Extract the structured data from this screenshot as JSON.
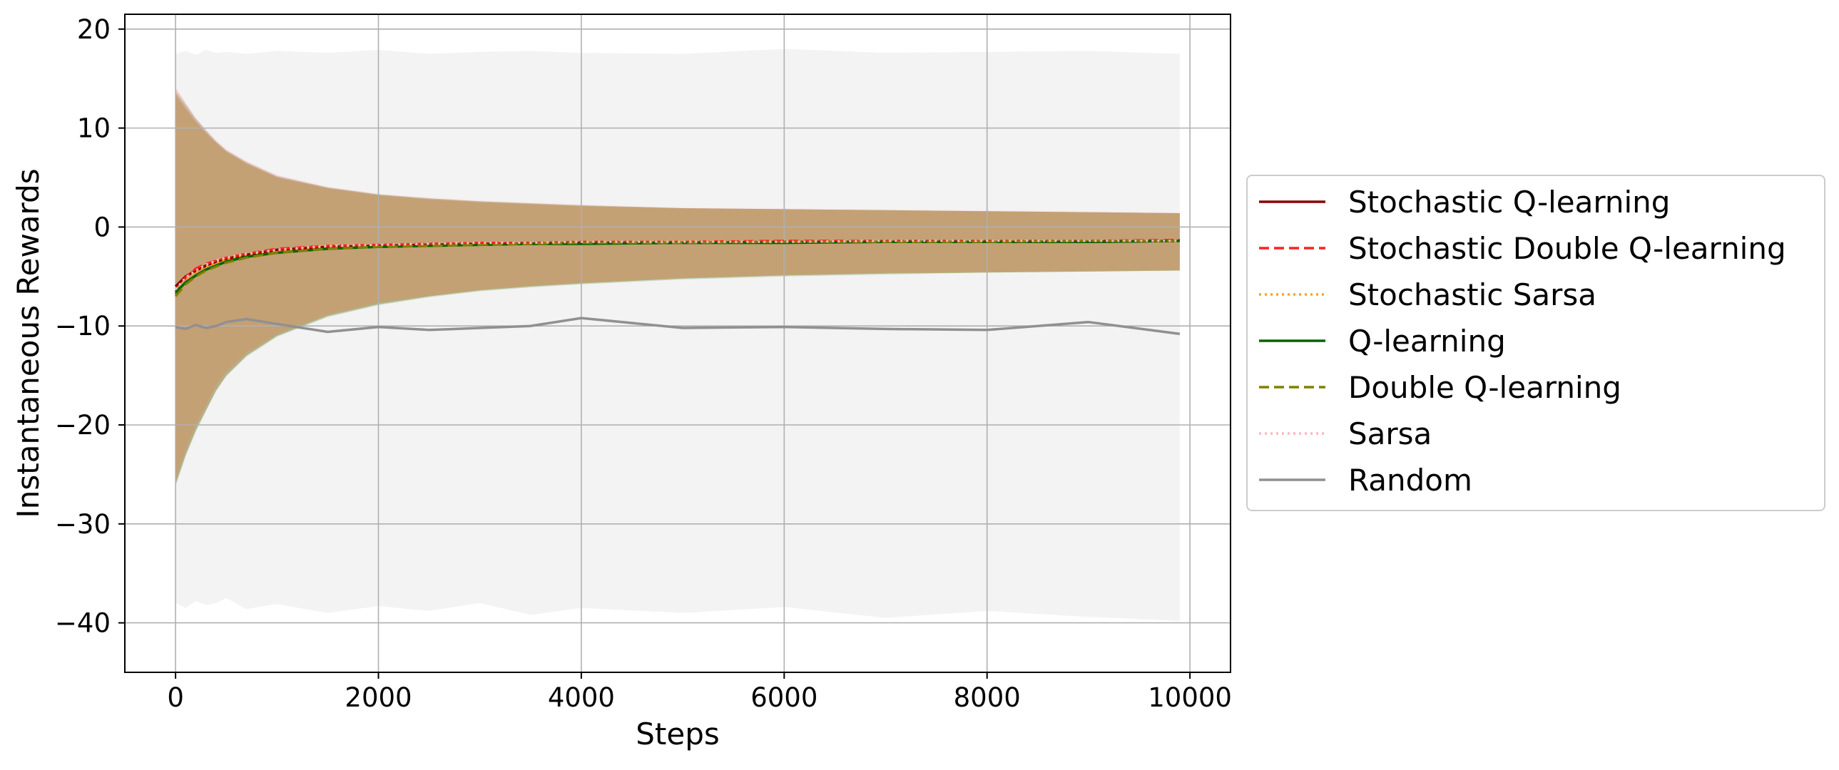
{
  "chart_data": {
    "type": "line",
    "title": "",
    "xlabel": "Steps",
    "ylabel": "Instantaneous Rewards",
    "xlim": [
      -500,
      10400
    ],
    "ylim": [
      -45,
      21.5
    ],
    "x_ticks": [
      0,
      2000,
      4000,
      6000,
      8000,
      10000
    ],
    "x_tick_labels": [
      "0",
      "2000",
      "4000",
      "6000",
      "8000",
      "10000"
    ],
    "y_ticks": [
      20,
      10,
      0,
      -10,
      -20,
      -30,
      -40
    ],
    "y_tick_labels": [
      "20",
      "10",
      "0",
      "−10",
      "−20",
      "−30",
      "−40"
    ],
    "grid": true,
    "legend_position": "outside-right",
    "x": [
      0,
      100,
      200,
      300,
      400,
      500,
      700,
      1000,
      1500,
      2000,
      2500,
      3000,
      3500,
      4000,
      5000,
      6000,
      7000,
      8000,
      9000,
      9900
    ],
    "series": [
      {
        "name": "Stochastic Q-learning",
        "color": "#8b0000",
        "dash": "solid",
        "values": [
          -6.0,
          -5.0,
          -4.4,
          -3.9,
          -3.5,
          -3.2,
          -2.8,
          -2.3,
          -2.0,
          -1.9,
          -1.8,
          -1.7,
          -1.7,
          -1.6,
          -1.6,
          -1.5,
          -1.5,
          -1.5,
          -1.5,
          -1.4
        ],
        "band_upper": [
          14.0,
          12.5,
          11.0,
          9.8,
          8.7,
          7.8,
          6.6,
          5.2,
          4.0,
          3.3,
          2.9,
          2.6,
          2.4,
          2.2,
          1.9,
          1.8,
          1.7,
          1.6,
          1.5,
          1.4
        ],
        "band_lower": [
          -26.0,
          -23.0,
          -20.5,
          -18.5,
          -16.5,
          -15.0,
          -13.0,
          -11.0,
          -9.0,
          -7.8,
          -7.0,
          -6.4,
          -6.0,
          -5.7,
          -5.2,
          -4.9,
          -4.7,
          -4.6,
          -4.5,
          -4.4
        ]
      },
      {
        "name": "Stochastic Double Q-learning",
        "color": "#ff2020",
        "dash": "dashed",
        "values": [
          -6.8,
          -5.1,
          -4.2,
          -3.7,
          -3.4,
          -3.1,
          -2.7,
          -2.2,
          -1.9,
          -1.8,
          -1.7,
          -1.6,
          -1.6,
          -1.5,
          -1.5,
          -1.4,
          -1.4,
          -1.4,
          -1.4,
          -1.3
        ],
        "band_upper": [
          13.5,
          12.0,
          10.6,
          9.5,
          8.5,
          7.6,
          6.4,
          5.0,
          3.9,
          3.2,
          2.8,
          2.5,
          2.3,
          2.1,
          1.9,
          1.8,
          1.7,
          1.6,
          1.5,
          1.4
        ],
        "band_lower": [
          -25.5,
          -22.5,
          -20.0,
          -18.0,
          -16.0,
          -14.6,
          -12.7,
          -10.8,
          -8.8,
          -7.6,
          -6.9,
          -6.3,
          -5.9,
          -5.6,
          -5.1,
          -4.8,
          -4.6,
          -4.5,
          -4.4,
          -4.3
        ]
      },
      {
        "name": "Stochastic Sarsa",
        "color": "#ffa500",
        "dash": "dotted",
        "values": [
          -6.5,
          -5.3,
          -4.6,
          -4.0,
          -3.6,
          -3.3,
          -2.9,
          -2.4,
          -2.0,
          -1.9,
          -1.8,
          -1.7,
          -1.6,
          -1.6,
          -1.5,
          -1.5,
          -1.5,
          -1.4,
          -1.4,
          -1.4
        ],
        "band_upper": [
          13.8,
          12.2,
          10.8,
          9.6,
          8.6,
          7.7,
          6.5,
          5.1,
          4.0,
          3.3,
          2.9,
          2.6,
          2.4,
          2.2,
          1.9,
          1.8,
          1.7,
          1.6,
          1.5,
          1.4
        ],
        "band_lower": [
          -25.8,
          -22.8,
          -20.3,
          -18.2,
          -16.3,
          -14.8,
          -12.9,
          -10.9,
          -8.9,
          -7.7,
          -7.0,
          -6.4,
          -6.0,
          -5.7,
          -5.2,
          -4.9,
          -4.7,
          -4.6,
          -4.5,
          -4.4
        ]
      },
      {
        "name": "Q-learning",
        "color": "#006400",
        "dash": "solid",
        "values": [
          -6.6,
          -5.6,
          -4.9,
          -4.3,
          -3.9,
          -3.5,
          -3.0,
          -2.6,
          -2.2,
          -2.0,
          -1.9,
          -1.8,
          -1.7,
          -1.7,
          -1.6,
          -1.6,
          -1.5,
          -1.5,
          -1.5,
          -1.4
        ],
        "band_upper": [
          13.6,
          12.3,
          10.9,
          9.7,
          8.6,
          7.7,
          6.5,
          5.1,
          4.0,
          3.3,
          2.9,
          2.6,
          2.4,
          2.2,
          1.9,
          1.8,
          1.7,
          1.6,
          1.5,
          1.4
        ],
        "band_lower": [
          -26.2,
          -23.2,
          -20.7,
          -18.6,
          -16.6,
          -15.1,
          -13.1,
          -11.1,
          -9.1,
          -7.9,
          -7.1,
          -6.5,
          -6.1,
          -5.8,
          -5.3,
          -5.0,
          -4.8,
          -4.6,
          -4.5,
          -4.4
        ]
      },
      {
        "name": "Double Q-learning",
        "color": "#808000",
        "dash": "dashed",
        "values": [
          -7.0,
          -5.8,
          -5.0,
          -4.4,
          -4.0,
          -3.6,
          -3.1,
          -2.6,
          -2.2,
          -2.0,
          -1.9,
          -1.8,
          -1.7,
          -1.6,
          -1.6,
          -1.5,
          -1.5,
          -1.5,
          -1.4,
          -1.4
        ],
        "band_upper": [
          13.2,
          11.9,
          10.6,
          9.5,
          8.5,
          7.6,
          6.4,
          5.0,
          3.9,
          3.2,
          2.8,
          2.5,
          2.3,
          2.1,
          1.9,
          1.8,
          1.7,
          1.6,
          1.5,
          1.4
        ],
        "band_lower": [
          -26.0,
          -23.0,
          -20.6,
          -18.5,
          -16.5,
          -15.0,
          -13.0,
          -11.0,
          -9.0,
          -7.8,
          -7.0,
          -6.4,
          -6.0,
          -5.7,
          -5.2,
          -4.9,
          -4.7,
          -4.6,
          -4.5,
          -4.4
        ]
      },
      {
        "name": "Sarsa",
        "color": "#ffb6c1",
        "dash": "dotted",
        "values": [
          -6.3,
          -5.1,
          -4.4,
          -3.8,
          -3.4,
          -3.1,
          -2.7,
          -2.3,
          -1.9,
          -1.8,
          -1.7,
          -1.6,
          -1.6,
          -1.5,
          -1.5,
          -1.5,
          -1.4,
          -1.4,
          -1.4,
          -1.4
        ],
        "band_upper": [
          14.2,
          12.6,
          11.1,
          9.9,
          8.8,
          7.9,
          6.7,
          5.3,
          4.1,
          3.4,
          3.0,
          2.7,
          2.5,
          2.3,
          2.0,
          1.9,
          1.8,
          1.7,
          1.6,
          1.5
        ],
        "band_lower": [
          -25.5,
          -22.6,
          -20.1,
          -18.1,
          -16.2,
          -14.7,
          -12.8,
          -10.8,
          -8.8,
          -7.6,
          -6.9,
          -6.3,
          -5.9,
          -5.6,
          -5.1,
          -4.8,
          -4.6,
          -4.5,
          -4.4,
          -4.3
        ]
      },
      {
        "name": "Random",
        "color": "#909090",
        "dash": "solid",
        "values": [
          -10.1,
          -10.3,
          -9.9,
          -10.2,
          -10.0,
          -9.6,
          -9.3,
          -9.8,
          -10.6,
          -10.1,
          -10.4,
          -10.2,
          -10.0,
          -9.2,
          -10.2,
          -10.1,
          -10.3,
          -10.4,
          -9.6,
          -10.8
        ],
        "band_upper": [
          17.5,
          17.8,
          17.4,
          17.9,
          17.6,
          17.7,
          17.5,
          17.8,
          17.6,
          17.9,
          17.5,
          17.7,
          17.8,
          17.6,
          17.5,
          18.0,
          17.6,
          17.7,
          17.8,
          17.5
        ],
        "band_lower": [
          -38.0,
          -38.5,
          -37.8,
          -38.2,
          -38.0,
          -37.5,
          -38.6,
          -38.1,
          -39.0,
          -38.3,
          -38.8,
          -38.0,
          -39.2,
          -38.5,
          -39.0,
          -38.4,
          -39.5,
          -38.8,
          -39.4,
          -39.8
        ]
      }
    ]
  }
}
